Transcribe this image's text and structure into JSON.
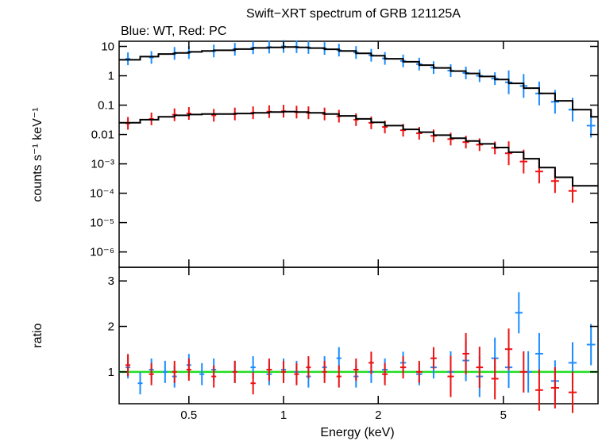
{
  "chart_data": [
    {
      "type": "scatter",
      "title": "Swift−XRT spectrum of GRB 121125A",
      "subtitle": "Blue: WT, Red: PC",
      "xlabel": "",
      "ylabel": "counts s⁻¹ keV⁻¹",
      "xscale": "log",
      "yscale": "log",
      "xlim": [
        0.3,
        10
      ],
      "ylim": [
        3e-07,
        15
      ],
      "y_ticks": [
        {
          "value": 10,
          "label": "10"
        },
        {
          "value": 1,
          "label": "1"
        },
        {
          "value": 0.1,
          "label": "0.1"
        },
        {
          "value": 0.01,
          "label": "0.01"
        },
        {
          "value": 0.001,
          "label": "10⁻³"
        },
        {
          "value": 0.0001,
          "label": "10⁻⁴"
        },
        {
          "value": 1e-05,
          "label": "10⁻⁵"
        },
        {
          "value": 1e-06,
          "label": "10⁻⁶"
        }
      ],
      "series": [
        {
          "color": "#1a8cff",
          "x": [
            0.32,
            0.38,
            0.45,
            0.5,
            0.6,
            0.7,
            0.8,
            0.9,
            1.0,
            1.1,
            1.2,
            1.35,
            1.5,
            1.7,
            1.9,
            2.1,
            2.4,
            2.7,
            3.0,
            3.4,
            3.8,
            4.2,
            4.7,
            5.2,
            5.8,
            6.5,
            7.3,
            8.3,
            9.5
          ],
          "y": [
            3.8,
            4.2,
            5.8,
            6.2,
            7.0,
            8.0,
            9.0,
            9.5,
            10.0,
            9.8,
            9.2,
            8.5,
            7.5,
            6.2,
            5.0,
            3.9,
            3.2,
            2.5,
            1.9,
            1.5,
            1.25,
            1.0,
            0.8,
            0.6,
            0.45,
            0.25,
            0.13,
            0.07,
            0.02
          ]
        },
        {
          "color": "#ee1111",
          "x": [
            0.32,
            0.38,
            0.45,
            0.5,
            0.6,
            0.7,
            0.8,
            0.9,
            1.0,
            1.1,
            1.2,
            1.35,
            1.5,
            1.7,
            1.9,
            2.1,
            2.4,
            2.7,
            3.0,
            3.4,
            3.8,
            4.2,
            4.7,
            5.2,
            5.8,
            6.5,
            7.3,
            8.3
          ],
          "y": [
            0.024,
            0.034,
            0.047,
            0.052,
            0.045,
            0.05,
            0.055,
            0.06,
            0.062,
            0.058,
            0.055,
            0.05,
            0.042,
            0.032,
            0.025,
            0.018,
            0.014,
            0.011,
            0.009,
            0.007,
            0.0055,
            0.0045,
            0.0035,
            0.0023,
            0.0012,
            0.00055,
            0.00026,
            0.00012
          ]
        },
        {
          "color": "#000000",
          "type": "step",
          "x": [
            0.3,
            0.35,
            0.4,
            0.45,
            0.5,
            0.55,
            0.6,
            0.7,
            0.8,
            0.9,
            1.0,
            1.1,
            1.2,
            1.35,
            1.5,
            1.7,
            1.9,
            2.1,
            2.4,
            2.7,
            3.0,
            3.4,
            3.8,
            4.2,
            4.7,
            5.2,
            5.8,
            6.5,
            7.3,
            8.3,
            9.5
          ],
          "y": [
            3.5,
            4.5,
            5.5,
            6.0,
            6.5,
            7.0,
            7.4,
            8.1,
            8.9,
            9.3,
            9.5,
            9.3,
            8.8,
            8.0,
            7.0,
            5.8,
            4.8,
            3.8,
            3.0,
            2.3,
            1.85,
            1.45,
            1.2,
            0.95,
            0.75,
            0.55,
            0.38,
            0.25,
            0.14,
            0.07,
            0.04
          ]
        },
        {
          "color": "#000000",
          "type": "step",
          "x": [
            0.3,
            0.35,
            0.4,
            0.45,
            0.5,
            0.55,
            0.6,
            0.7,
            0.8,
            0.9,
            1.0,
            1.1,
            1.2,
            1.35,
            1.5,
            1.7,
            1.9,
            2.1,
            2.4,
            2.7,
            3.0,
            3.4,
            3.8,
            4.2,
            4.7,
            5.2,
            5.8,
            6.5,
            7.3,
            8.3
          ],
          "y": [
            0.025,
            0.032,
            0.04,
            0.045,
            0.048,
            0.05,
            0.05,
            0.052,
            0.055,
            0.058,
            0.06,
            0.058,
            0.055,
            0.05,
            0.043,
            0.034,
            0.026,
            0.02,
            0.015,
            0.012,
            0.0095,
            0.0075,
            0.006,
            0.0048,
            0.0036,
            0.0025,
            0.0015,
            0.00075,
            0.00035,
            0.00018
          ]
        }
      ]
    },
    {
      "type": "scatter",
      "xlabel": "Energy (keV)",
      "ylabel": "ratio",
      "xscale": "log",
      "xlim": [
        0.3,
        10
      ],
      "ylim": [
        0.3,
        3.3
      ],
      "x_ticks": [
        {
          "value": 0.5,
          "label": "0.5"
        },
        {
          "value": 1,
          "label": "1"
        },
        {
          "value": 2,
          "label": "2"
        },
        {
          "value": 5,
          "label": "5"
        }
      ],
      "y_ticks": [
        {
          "value": 1,
          "label": "1"
        },
        {
          "value": 2,
          "label": "2"
        },
        {
          "value": 3,
          "label": "3"
        }
      ],
      "reference_line": {
        "y": 1,
        "color": "#22dd22"
      },
      "series": [
        {
          "color": "#1a8cff",
          "x": [
            0.32,
            0.35,
            0.38,
            0.42,
            0.45,
            0.5,
            0.55,
            0.6,
            0.7,
            0.8,
            0.9,
            1.0,
            1.1,
            1.2,
            1.35,
            1.5,
            1.7,
            1.9,
            2.1,
            2.4,
            2.7,
            3.0,
            3.4,
            3.8,
            4.2,
            4.7,
            5.2,
            5.6,
            6.0,
            6.5,
            7.3,
            8.3,
            9.5
          ],
          "y": [
            1.1,
            0.75,
            1.05,
            1.0,
            0.9,
            1.15,
            0.95,
            1.05,
            1.0,
            1.1,
            0.95,
            1.05,
            1.0,
            0.9,
            1.1,
            1.3,
            0.9,
            1.0,
            1.05,
            1.2,
            0.95,
            1.1,
            1.0,
            1.25,
            0.9,
            1.3,
            1.1,
            2.3,
            1.0,
            1.4,
            0.8,
            1.2,
            1.6
          ]
        },
        {
          "color": "#ee1111",
          "x": [
            0.32,
            0.38,
            0.45,
            0.5,
            0.6,
            0.7,
            0.8,
            0.9,
            1.0,
            1.1,
            1.2,
            1.35,
            1.5,
            1.7,
            1.9,
            2.1,
            2.4,
            2.7,
            3.0,
            3.4,
            3.8,
            4.2,
            4.7,
            5.2,
            5.8,
            6.5,
            7.3,
            8.3
          ],
          "y": [
            1.15,
            0.95,
            1.0,
            1.05,
            0.9,
            1.0,
            0.75,
            1.05,
            1.0,
            0.95,
            1.1,
            1.0,
            0.9,
            1.05,
            1.2,
            0.95,
            1.1,
            1.0,
            1.3,
            0.9,
            1.4,
            1.1,
            0.85,
            1.5,
            1.0,
            0.6,
            0.65,
            0.55
          ]
        }
      ]
    }
  ]
}
